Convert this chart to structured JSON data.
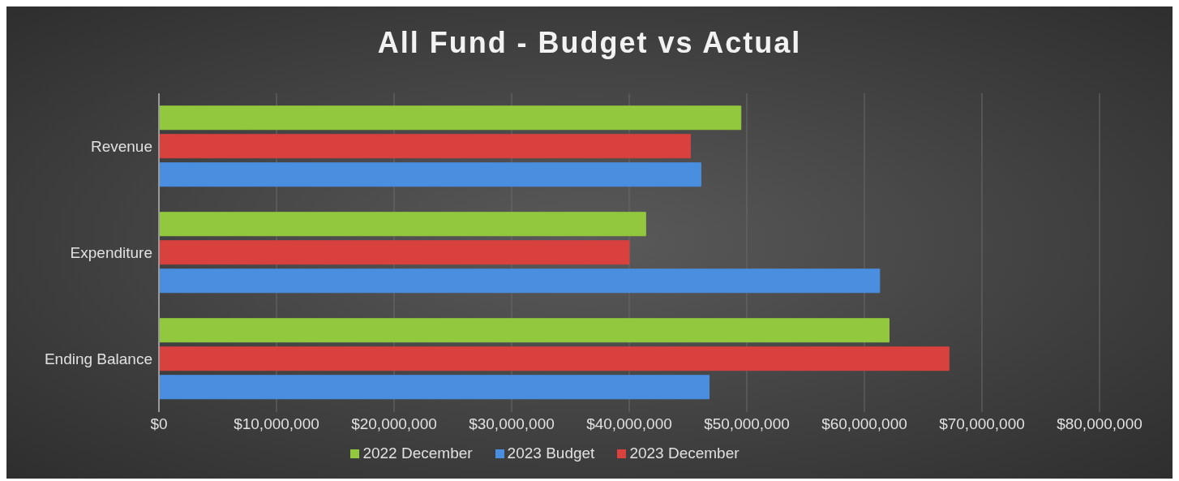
{
  "chart_data": {
    "type": "bar",
    "title": "All Fund - Budget vs Actual",
    "orientation": "horizontal",
    "categories": [
      "Revenue",
      "Expenditure",
      "Ending Balance"
    ],
    "series": [
      {
        "name": "2022 December",
        "color": "#92c83e",
        "values": [
          49500000,
          41400000,
          62100000
        ]
      },
      {
        "name": "2023 December",
        "color": "#d9413e",
        "values": [
          45200000,
          40000000,
          67200000
        ]
      },
      {
        "name": "2023 Budget",
        "color": "#4a8ee0",
        "values": [
          46100000,
          61300000,
          46800000
        ]
      }
    ],
    "xlim": [
      0,
      80000000
    ],
    "xticks": [
      {
        "value": 0,
        "label": "$0"
      },
      {
        "value": 10000000,
        "label": "$10,000,000"
      },
      {
        "value": 20000000,
        "label": "$20,000,000"
      },
      {
        "value": 30000000,
        "label": "$30,000,000"
      },
      {
        "value": 40000000,
        "label": "$40,000,000"
      },
      {
        "value": 50000000,
        "label": "$50,000,000"
      },
      {
        "value": 60000000,
        "label": "$60,000,000"
      },
      {
        "value": 70000000,
        "label": "$70,000,000"
      },
      {
        "value": 80000000,
        "label": "$80,000,000"
      }
    ],
    "grid": "x",
    "legend": "bottom"
  }
}
